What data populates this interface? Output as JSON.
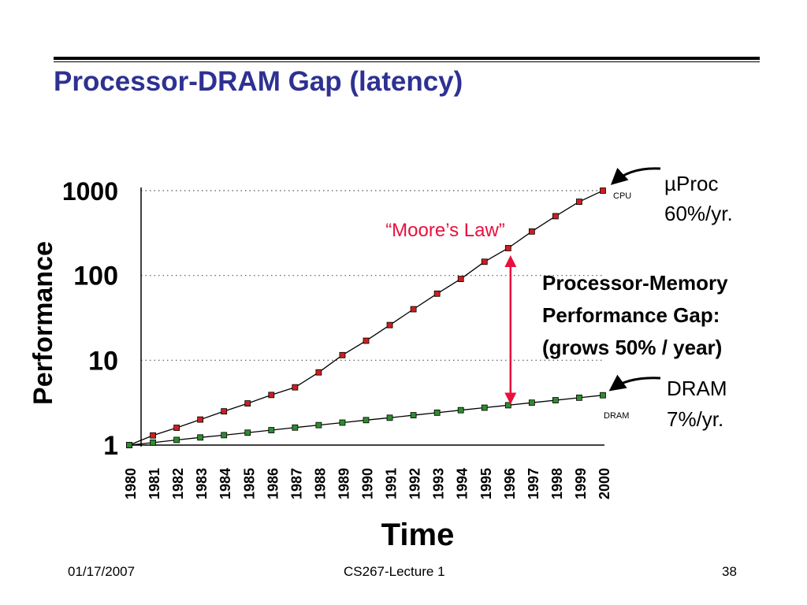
{
  "slide": {
    "title": "Processor-DRAM Gap (latency)",
    "footer": {
      "date": "01/17/2007",
      "course": "CS267-Lecture 1",
      "page": "38"
    }
  },
  "colors": {
    "title": "#2e3192",
    "cpu_marker": "#cc1f1f",
    "dram_marker": "#2e8b2e",
    "gap_arrow": "#e8103c",
    "moores_law": "#e8103c"
  },
  "chart_data": {
    "type": "line",
    "yscale": "log",
    "ylim": [
      1,
      1000
    ],
    "xlim": [
      1980,
      2000
    ],
    "title": "",
    "xlabel": "Time",
    "ylabel": "Performance",
    "yticks": [
      "1",
      "10",
      "100",
      "1000"
    ],
    "categories": [
      "1980",
      "1981",
      "1982",
      "1983",
      "1984",
      "1985",
      "1986",
      "1987",
      "1988",
      "1989",
      "1990",
      "1991",
      "1992",
      "1993",
      "1994",
      "1995",
      "1996",
      "1997",
      "1998",
      "1999",
      "2000"
    ],
    "grid": "dotted horizontal at 10, 100, 1000",
    "series": [
      {
        "name": "CPU",
        "values": [
          1,
          1.3,
          1.6,
          2.0,
          2.5,
          3.1,
          3.9,
          4.8,
          7.2,
          11.5,
          17,
          26,
          40,
          61,
          91,
          145,
          210,
          330,
          500,
          740,
          1000
        ]
      },
      {
        "name": "DRAM",
        "values": [
          1,
          1.07,
          1.15,
          1.23,
          1.31,
          1.4,
          1.5,
          1.61,
          1.72,
          1.84,
          1.97,
          2.1,
          2.25,
          2.41,
          2.58,
          2.76,
          2.95,
          3.16,
          3.38,
          3.62,
          3.87
        ]
      }
    ],
    "annotations": {
      "cpu_label": "µProc",
      "cpu_rate": "60%/yr.",
      "dram_label": "DRAM",
      "dram_rate": "7%/yr.",
      "moores_law": "“Moore’s Law”",
      "gap_line1": "Processor-Memory",
      "gap_line2": "Performance Gap:",
      "gap_line3": "(grows 50% / year)",
      "gap_year": 1996
    }
  }
}
